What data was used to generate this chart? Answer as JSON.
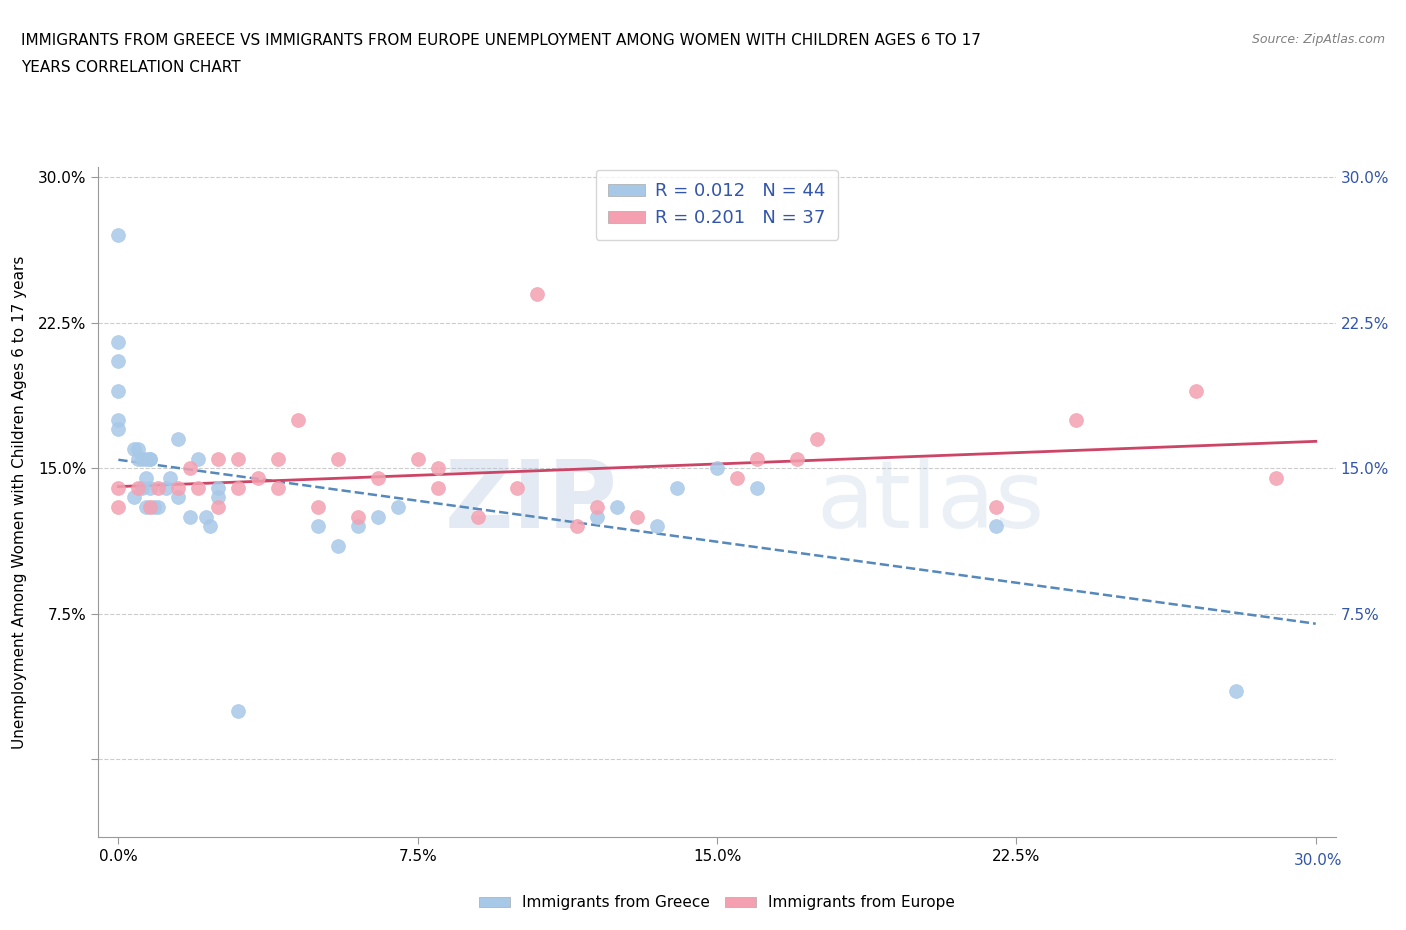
{
  "title_line1": "IMMIGRANTS FROM GREECE VS IMMIGRANTS FROM EUROPE UNEMPLOYMENT AMONG WOMEN WITH CHILDREN AGES 6 TO 17",
  "title_line2": "YEARS CORRELATION CHART",
  "source_text": "Source: ZipAtlas.com",
  "ylabel": "Unemployment Among Women with Children Ages 6 to 17 years",
  "xlim": [
    -0.005,
    0.305
  ],
  "ylim": [
    -0.04,
    0.305
  ],
  "xtick_vals": [
    0.0,
    0.075,
    0.15,
    0.225,
    0.3
  ],
  "xtick_labels": [
    "0.0%",
    "7.5%",
    "15.0%",
    "22.5%",
    ""
  ],
  "ytick_vals": [
    0.0,
    0.075,
    0.15,
    0.225,
    0.3
  ],
  "ytick_labels_left": [
    "",
    "7.5%",
    "15.0%",
    "22.5%",
    "30.0%"
  ],
  "ytick_labels_right": [
    "",
    "7.5%",
    "15.0%",
    "22.5%",
    "30.0%"
  ],
  "greece_color": "#a8c8e8",
  "europe_color": "#f4a0b0",
  "greece_scatter_x": [
    0.0,
    0.0,
    0.0,
    0.0,
    0.0,
    0.0,
    0.004,
    0.004,
    0.005,
    0.005,
    0.006,
    0.006,
    0.007,
    0.007,
    0.007,
    0.008,
    0.008,
    0.008,
    0.009,
    0.01,
    0.012,
    0.013,
    0.015,
    0.015,
    0.018,
    0.02,
    0.022,
    0.023,
    0.025,
    0.025,
    0.03,
    0.05,
    0.055,
    0.06,
    0.065,
    0.07,
    0.12,
    0.125,
    0.135,
    0.14,
    0.15,
    0.16,
    0.22,
    0.28
  ],
  "greece_scatter_y": [
    0.27,
    0.205,
    0.19,
    0.175,
    0.215,
    0.17,
    0.135,
    0.16,
    0.16,
    0.155,
    0.155,
    0.14,
    0.13,
    0.145,
    0.155,
    0.155,
    0.14,
    0.155,
    0.13,
    0.13,
    0.14,
    0.145,
    0.135,
    0.165,
    0.125,
    0.155,
    0.125,
    0.12,
    0.14,
    0.135,
    0.025,
    0.12,
    0.11,
    0.12,
    0.125,
    0.13,
    0.125,
    0.13,
    0.12,
    0.14,
    0.15,
    0.14,
    0.12,
    0.035
  ],
  "europe_scatter_x": [
    0.0,
    0.0,
    0.005,
    0.008,
    0.01,
    0.015,
    0.018,
    0.02,
    0.025,
    0.025,
    0.03,
    0.03,
    0.035,
    0.04,
    0.04,
    0.045,
    0.05,
    0.055,
    0.06,
    0.065,
    0.075,
    0.08,
    0.08,
    0.09,
    0.1,
    0.105,
    0.115,
    0.12,
    0.13,
    0.155,
    0.16,
    0.17,
    0.175,
    0.22,
    0.24,
    0.27,
    0.29
  ],
  "europe_scatter_y": [
    0.13,
    0.14,
    0.14,
    0.13,
    0.14,
    0.14,
    0.15,
    0.14,
    0.13,
    0.155,
    0.14,
    0.155,
    0.145,
    0.14,
    0.155,
    0.175,
    0.13,
    0.155,
    0.125,
    0.145,
    0.155,
    0.14,
    0.15,
    0.125,
    0.14,
    0.24,
    0.12,
    0.13,
    0.125,
    0.145,
    0.155,
    0.155,
    0.165,
    0.13,
    0.175,
    0.19,
    0.145
  ],
  "greece_R": 0.012,
  "greece_N": 44,
  "europe_R": 0.201,
  "europe_N": 37,
  "legend_label_greece": "Immigrants from Greece",
  "legend_label_europe": "Immigrants from Europe",
  "watermark_zip": "ZIP",
  "watermark_atlas": "atlas",
  "background_color": "#ffffff",
  "grid_color": "#cccccc",
  "trendline_greece_color": "#5588bb",
  "trendline_europe_color": "#cc4466",
  "blue_label_color": "#3355aa",
  "axis_label_color": "#555555"
}
